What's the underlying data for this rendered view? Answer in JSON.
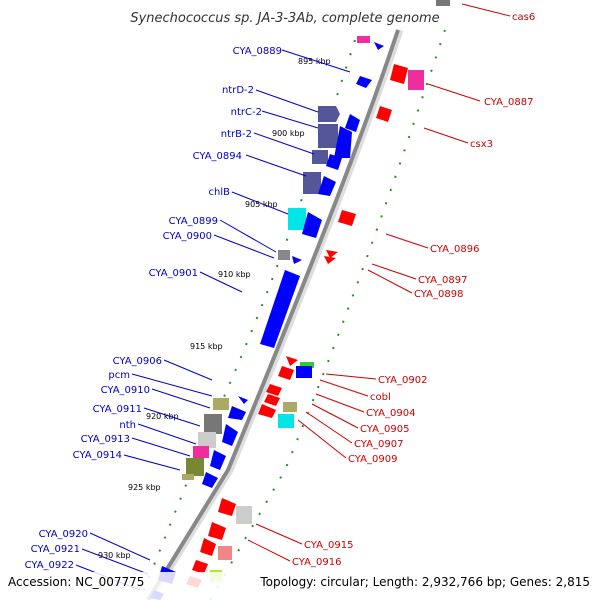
{
  "title": "Synechococcus sp. JA-3-3Ab, complete genome",
  "accession": "Accession: NC_007775",
  "summary": "Topology: circular; Length: 2,932,766 bp; Genes: 2,815",
  "colors": {
    "forward_label": "#0000cc",
    "reverse_label": "#cc0000",
    "backbone": "#888888",
    "ticks": "#228b22"
  },
  "kbp_labels": [
    "895 kbp",
    "900 kbp",
    "905 kbp",
    "910 kbp",
    "915 kbp",
    "920 kbp",
    "925 kbp",
    "930 kbp"
  ],
  "forward_labels": [
    "CYA_0889",
    "ntrD-2",
    "ntrC-2",
    "ntrB-2",
    "CYA_0894",
    "chlB",
    "CYA_0899",
    "CYA_0900",
    "CYA_0901",
    "CYA_0906",
    "pcm",
    "CYA_0910",
    "CYA_0911",
    "nth",
    "CYA_0913",
    "CYA_0914",
    "CYA_0920",
    "CYA_0921",
    "CYA_0922"
  ],
  "reverse_labels": [
    "cas6",
    "CYA_0887",
    "csx3",
    "CYA_0896",
    "CYA_0897",
    "CYA_0898",
    "CYA_0902",
    "cobl",
    "CYA_0904",
    "CYA_0905",
    "CYA_0907",
    "CYA_0909",
    "CYA_0915",
    "CYA_0916"
  ]
}
